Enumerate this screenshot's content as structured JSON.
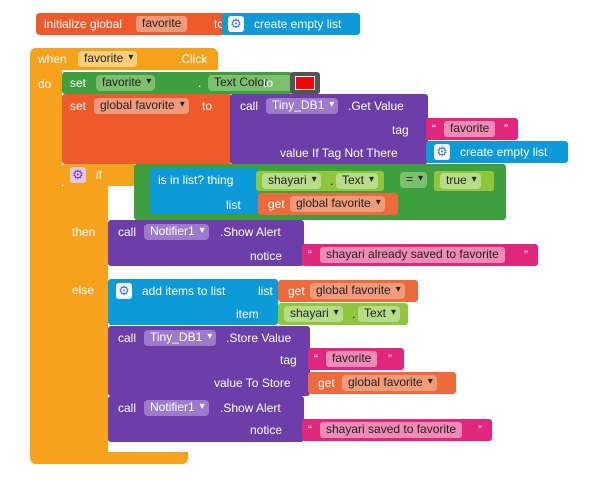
{
  "init": {
    "label": "initialize global",
    "var_name": "favorite",
    "to": "to",
    "value": "create empty list"
  },
  "event": {
    "when": "when",
    "component": "favorite",
    "event": ".Click",
    "do": "do"
  },
  "set_color": {
    "set": "set",
    "component": "favorite",
    "dot": ".",
    "property": "Text Color",
    "to": "to",
    "color": "#ff0000"
  },
  "set_global": {
    "set": "set",
    "var": "global favorite",
    "to": "to"
  },
  "getvalue": {
    "call": "call",
    "component": "Tiny_DB1",
    "method": ".Get Value",
    "tag_label": "tag",
    "tag_value": "favorite",
    "default_label": "value If Tag Not There",
    "default_value": "create empty list"
  },
  "if_block": {
    "if": "if",
    "then": "then",
    "else": "else",
    "is_in_list": "is in list? thing",
    "thing_component": "shayari",
    "thing_prop": "Text",
    "list_label": "list",
    "get": "get",
    "list_var": "global favorite",
    "compare_op": "=",
    "compare_value": "true"
  },
  "alert1": {
    "call": "call",
    "component": "Notifier1",
    "method": ".Show Alert",
    "notice": "notice",
    "text": "shayari already saved to favorite"
  },
  "add_items": {
    "label": "add items to list",
    "list_label": "list",
    "get": "get",
    "list_var": "global favorite",
    "item_label": "item",
    "item_component": "shayari",
    "item_prop": "Text"
  },
  "store": {
    "call": "call",
    "component": "Tiny_DB1",
    "method": ".Store Value",
    "tag_label": "tag",
    "tag_value": "favorite",
    "value_label": "value To Store",
    "get": "get",
    "value_var": "global favorite"
  },
  "alert2": {
    "call": "call",
    "component": "Notifier1",
    "method": ".Show Alert",
    "notice": "notice",
    "text": "shayari saved to favorite"
  },
  "quote_open": "“",
  "quote_close": "”",
  "dot": "."
}
